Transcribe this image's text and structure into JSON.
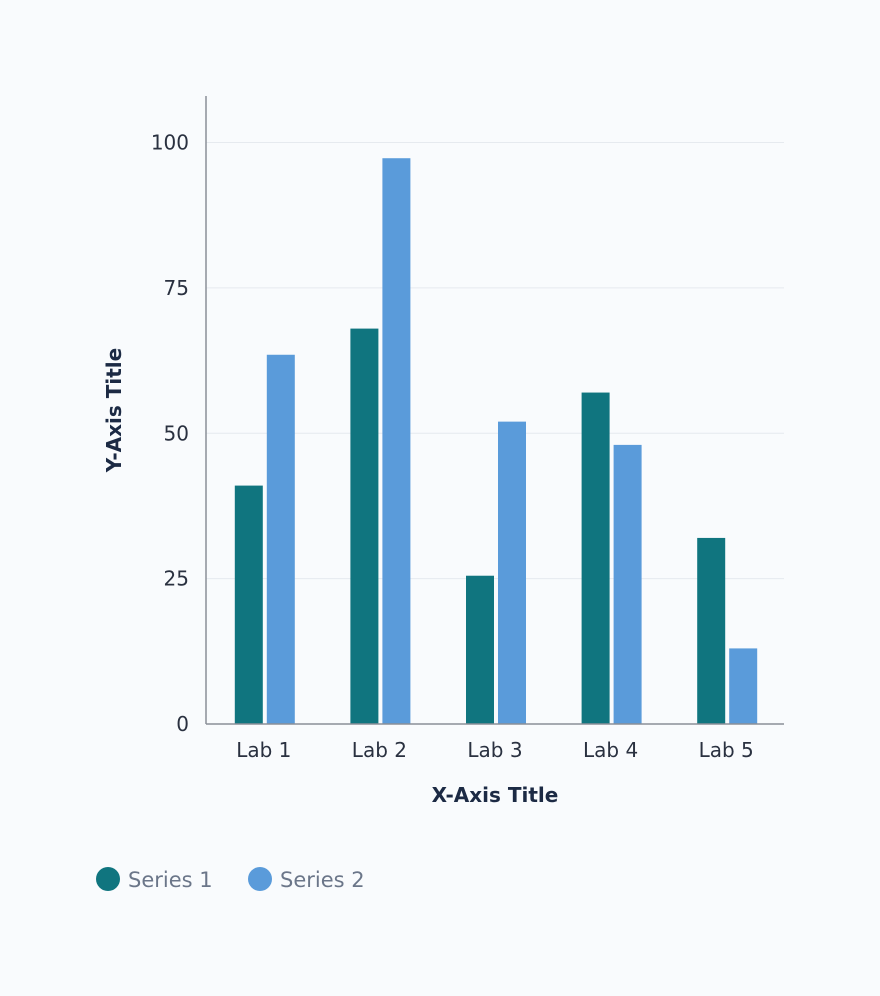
{
  "chart_data": {
    "type": "bar",
    "categories": [
      "Lab 1",
      "Lab 2",
      "Lab 3",
      "Lab 4",
      "Lab 5"
    ],
    "series": [
      {
        "name": "Series 1",
        "color": "#10757f",
        "values": [
          41,
          68,
          25.5,
          57,
          32
        ]
      },
      {
        "name": "Series 2",
        "color": "#5a9bda",
        "values": [
          63.5,
          97.3,
          52,
          48,
          13
        ]
      }
    ],
    "xlabel": "X-Axis Title",
    "ylabel": "Y-Axis Title",
    "ylim": [
      0,
      108
    ],
    "yticks": [
      0,
      25,
      50,
      75,
      100
    ],
    "grid": true,
    "legend": "bottom-left"
  }
}
